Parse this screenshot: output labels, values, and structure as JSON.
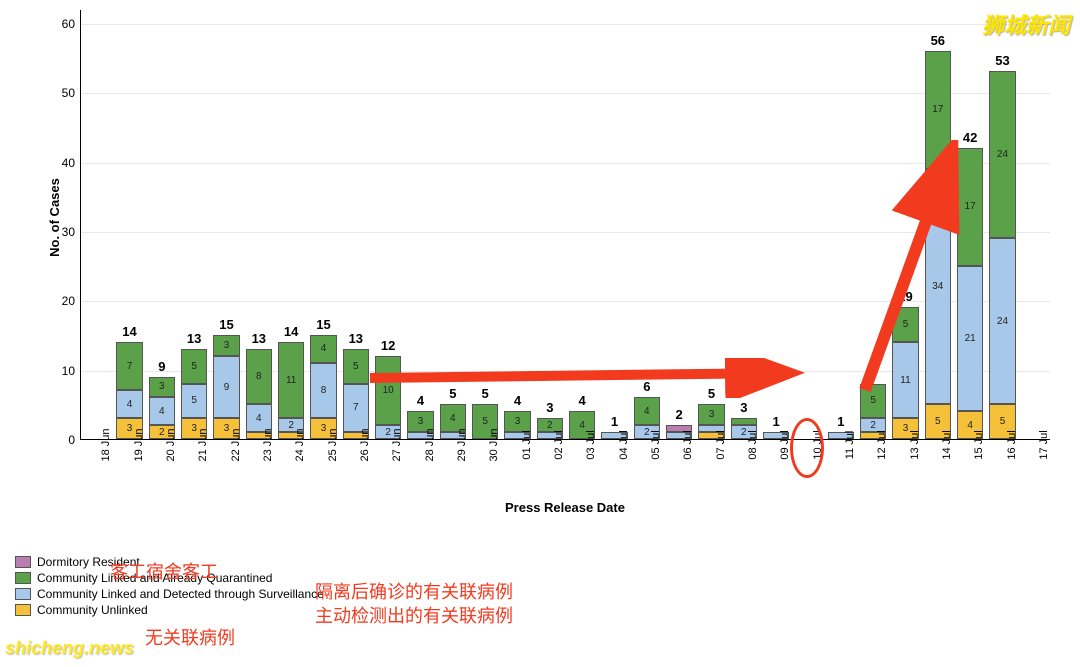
{
  "chart": {
    "type": "stacked-bar",
    "ylabel": "No. of Cases",
    "xlabel": "Press Release Date",
    "ylim": [
      0,
      62
    ],
    "ytick_step": 10,
    "yticks": [
      0,
      10,
      20,
      30,
      40,
      50,
      60
    ],
    "background_color": "#ffffff",
    "grid_color": "#e8e8e8",
    "bar_border": "#555555",
    "label_fontsize": 13,
    "tick_fontsize": 11,
    "series": [
      {
        "key": "unlinked",
        "label": "Community Unlinked",
        "color": "#f5c03a"
      },
      {
        "key": "surveillance",
        "label": "Community Linked and Detected through Surveillance",
        "color": "#a7c8e8"
      },
      {
        "key": "quarantined",
        "label": "Community Linked and Already Quarantined",
        "color": "#5aa14a"
      },
      {
        "key": "dormitory",
        "label": "Dormitory Resident",
        "color": "#b97fb0"
      }
    ],
    "categories": [
      "18 Jun",
      "19 Jun",
      "20 Jun",
      "21 Jun",
      "22 Jun",
      "23 Jun",
      "24 Jun",
      "25 Jun",
      "26 Jun",
      "27 Jun",
      "28 Jun",
      "29 Jun",
      "30 Jun",
      "01 Jul",
      "02 Jul",
      "03 Jul",
      "04 Jul",
      "05 Jul",
      "06 Jul",
      "07 Jul",
      "08 Jul",
      "09 Jul",
      "10 Jul",
      "11 Jul",
      "12 Jul",
      "13 Jul",
      "14 Jul",
      "15 Jul",
      "16 Jul",
      "17 Jul"
    ],
    "totals": [
      null,
      14,
      9,
      13,
      15,
      13,
      14,
      15,
      13,
      12,
      4,
      5,
      5,
      4,
      3,
      4,
      1,
      6,
      2,
      5,
      3,
      1,
      null,
      1,
      8,
      19,
      56,
      42,
      53,
      null
    ],
    "stacks": [
      {
        "unlinked": 0,
        "surveillance": 0,
        "quarantined": 0,
        "dormitory": 0
      },
      {
        "unlinked": 3,
        "surveillance": 4,
        "quarantined": 7,
        "dormitory": 0
      },
      {
        "unlinked": 2,
        "surveillance": 4,
        "quarantined": 3,
        "dormitory": 0
      },
      {
        "unlinked": 3,
        "surveillance": 5,
        "quarantined": 5,
        "dormitory": 0
      },
      {
        "unlinked": 3,
        "surveillance": 9,
        "quarantined": 3,
        "dormitory": 0
      },
      {
        "unlinked": 1,
        "surveillance": 4,
        "quarantined": 8,
        "dormitory": 0
      },
      {
        "unlinked": 1,
        "surveillance": 2,
        "quarantined": 11,
        "dormitory": 0
      },
      {
        "unlinked": 3,
        "surveillance": 8,
        "quarantined": 4,
        "dormitory": 0
      },
      {
        "unlinked": 1,
        "surveillance": 7,
        "quarantined": 5,
        "dormitory": 0
      },
      {
        "unlinked": 0,
        "surveillance": 2,
        "quarantined": 10,
        "dormitory": 0
      },
      {
        "unlinked": 0,
        "surveillance": 1,
        "quarantined": 3,
        "dormitory": 0
      },
      {
        "unlinked": 0,
        "surveillance": 1,
        "quarantined": 4,
        "dormitory": 0
      },
      {
        "unlinked": 0,
        "surveillance": 0,
        "quarantined": 5,
        "dormitory": 0
      },
      {
        "unlinked": 0,
        "surveillance": 1,
        "quarantined": 3,
        "dormitory": 0
      },
      {
        "unlinked": 0,
        "surveillance": 1,
        "quarantined": 2,
        "dormitory": 0
      },
      {
        "unlinked": 0,
        "surveillance": 0,
        "quarantined": 4,
        "dormitory": 0
      },
      {
        "unlinked": 0,
        "surveillance": 1,
        "quarantined": 0,
        "dormitory": 0
      },
      {
        "unlinked": 0,
        "surveillance": 2,
        "quarantined": 4,
        "dormitory": 0
      },
      {
        "unlinked": 0,
        "surveillance": 1,
        "quarantined": 0,
        "dormitory": 1
      },
      {
        "unlinked": 1,
        "surveillance": 1,
        "quarantined": 3,
        "dormitory": 0
      },
      {
        "unlinked": 0,
        "surveillance": 2,
        "quarantined": 1,
        "dormitory": 0
      },
      {
        "unlinked": 0,
        "surveillance": 1,
        "quarantined": 0,
        "dormitory": 0
      },
      {
        "unlinked": 0,
        "surveillance": 0,
        "quarantined": 0,
        "dormitory": 0
      },
      {
        "unlinked": 0,
        "surveillance": 1,
        "quarantined": 0,
        "dormitory": 0
      },
      {
        "unlinked": 1,
        "surveillance": 2,
        "quarantined": 5,
        "dormitory": 0
      },
      {
        "unlinked": 3,
        "surveillance": 11,
        "quarantined": 5,
        "dormitory": 0
      },
      {
        "unlinked": 5,
        "surveillance": 34,
        "quarantined": 17,
        "dormitory": 0
      },
      {
        "unlinked": 4,
        "surveillance": 21,
        "quarantined": 17,
        "dormitory": 0
      },
      {
        "unlinked": 5,
        "surveillance": 24,
        "quarantined": 24,
        "dormitory": 0
      },
      {
        "unlinked": 0,
        "surveillance": 0,
        "quarantined": 0,
        "dormitory": 0
      }
    ]
  },
  "annotations": {
    "cn_dormitory": "客工宿舍客工",
    "cn_quarantined": "隔离后确诊的有关联病例",
    "cn_surveillance": "主动检测出的有关联病例",
    "cn_unlinked": "无关联病例",
    "cn_partial": "Community Unlinked",
    "arrow_color": "#f23a1f",
    "circle_target_index": 22
  },
  "watermarks": {
    "top": "狮城新闻",
    "bottom": "shicheng.news"
  }
}
